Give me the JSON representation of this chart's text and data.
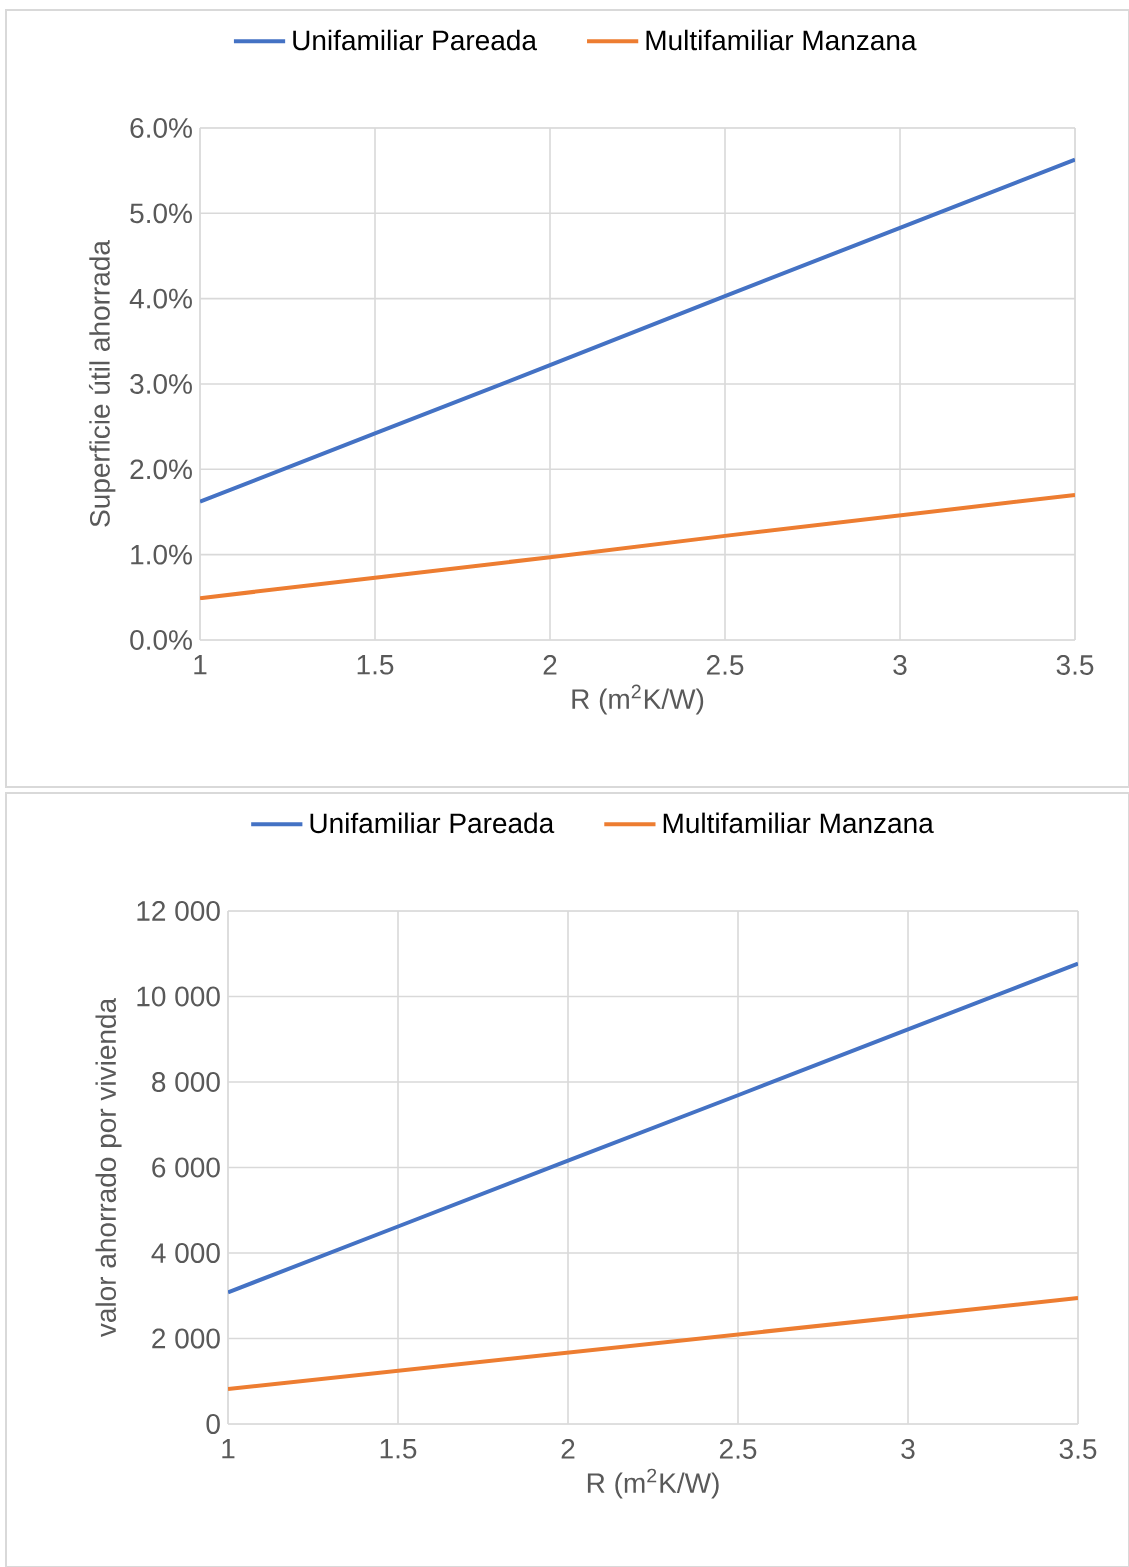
{
  "chart_data": [
    {
      "type": "line",
      "xlabel": "R (m$^{2}$K/W)",
      "ylabel": "Superficie útil ahorrada",
      "x": [
        1,
        1.5,
        2,
        2.5,
        3,
        3.5
      ],
      "series": [
        {
          "name": "Unifamiliar Pareada",
          "color": "#4472c4",
          "values": [
            1.62,
            2.42,
            3.22,
            4.03,
            4.83,
            5.63
          ]
        },
        {
          "name": "Multifamiliar Manzana",
          "color": "#ed7d31",
          "values": [
            0.49,
            0.73,
            0.97,
            1.22,
            1.46,
            1.7
          ]
        }
      ],
      "xlim": [
        1,
        3.5
      ],
      "ylim": [
        0,
        6
      ],
      "xticks": [
        1,
        1.5,
        2,
        2.5,
        3,
        3.5
      ],
      "yticks": [
        {
          "value": 0,
          "label": "0.0%"
        },
        {
          "value": 1,
          "label": "1.0%"
        },
        {
          "value": 2,
          "label": "2.0%"
        },
        {
          "value": 3,
          "label": "3.0%"
        },
        {
          "value": 4,
          "label": "4.0%"
        },
        {
          "value": 5,
          "label": "5.0%"
        },
        {
          "value": 6,
          "label": "6.0%"
        }
      ],
      "grid": true,
      "legend": "top"
    },
    {
      "type": "line",
      "xlabel": "R (m$^{2}$K/W)",
      "ylabel": "valor ahorrado por vivienda",
      "x": [
        1,
        1.5,
        2,
        2.5,
        3,
        3.5
      ],
      "series": [
        {
          "name": "Unifamiliar Pareada",
          "color": "#4472c4",
          "values": [
            3080,
            4620,
            6160,
            7690,
            9230,
            10770
          ]
        },
        {
          "name": "Multifamiliar Manzana",
          "color": "#ed7d31",
          "values": [
            820,
            1245,
            1670,
            2095,
            2520,
            2945
          ]
        }
      ],
      "xlim": [
        1,
        3.5
      ],
      "ylim": [
        0,
        12000
      ],
      "xticks": [
        1,
        1.5,
        2,
        2.5,
        3,
        3.5
      ],
      "yticks": [
        0,
        {
          "value": 2000,
          "label": "2 000"
        },
        {
          "value": 4000,
          "label": "4 000"
        },
        {
          "value": 6000,
          "label": "6 000"
        },
        {
          "value": 8000,
          "label": "8 000"
        },
        {
          "value": 10000,
          "label": "10 000"
        },
        {
          "value": 12000,
          "label": "12 000"
        }
      ],
      "grid": true,
      "legend": "top"
    }
  ]
}
